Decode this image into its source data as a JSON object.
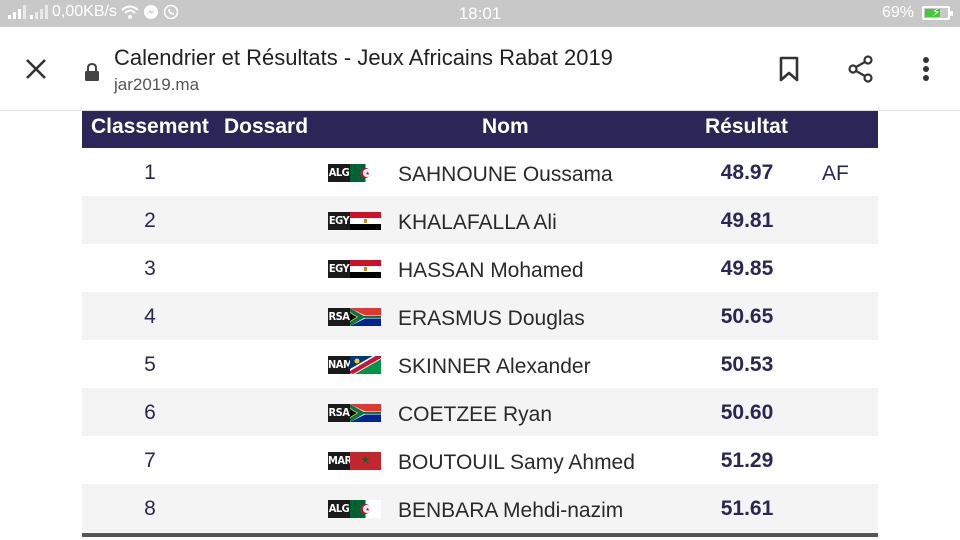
{
  "status": {
    "speed": "0,00KB/s",
    "time": "18:01",
    "battery": "69%",
    "battery_level": 0.69
  },
  "toolbar": {
    "title": "Calendrier et Résultats - Jeux Africains Rabat 2019",
    "url": "jar2019.ma"
  },
  "table": {
    "headers": {
      "rank": "Classement",
      "bib": "Dossard",
      "name": "Nom",
      "result": "Résultat"
    },
    "rows": [
      {
        "rank": "1",
        "country": "ALG",
        "name": "SAHNOUNE Oussama",
        "result": "48.97",
        "record": "AF"
      },
      {
        "rank": "2",
        "country": "EGY",
        "name": "KHALAFALLA Ali",
        "result": "49.81",
        "record": ""
      },
      {
        "rank": "3",
        "country": "EGY",
        "name": "HASSAN Mohamed",
        "result": "49.85",
        "record": ""
      },
      {
        "rank": "4",
        "country": "RSA",
        "name": "ERASMUS Douglas",
        "result": "50.65",
        "record": ""
      },
      {
        "rank": "5",
        "country": "NAM",
        "name": "SKINNER Alexander",
        "result": "50.53",
        "record": ""
      },
      {
        "rank": "6",
        "country": "RSA",
        "name": "COETZEE Ryan",
        "result": "50.60",
        "record": ""
      },
      {
        "rank": "7",
        "country": "MAR",
        "name": "BOUTOUIL Samy Ahmed",
        "result": "51.29",
        "record": ""
      },
      {
        "rank": "8",
        "country": "ALG",
        "name": "BENBARA Mehdi-nazim",
        "result": "51.61",
        "record": ""
      }
    ]
  }
}
